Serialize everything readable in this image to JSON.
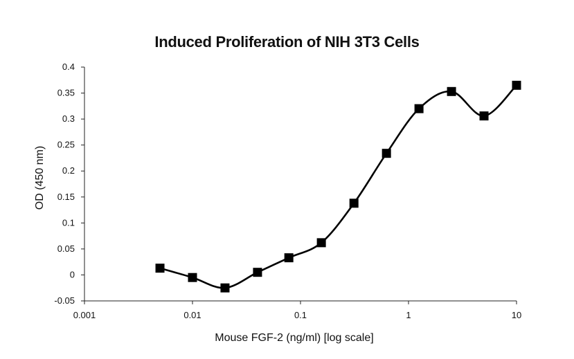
{
  "chart_data": {
    "type": "line",
    "title": "Induced Proliferation of NIH 3T3 Cells",
    "xlabel": "Mouse FGF-2 (ng/ml) [log scale]",
    "ylabel": "OD (450 nm)",
    "x_scale": "log",
    "xlim": [
      0.001,
      10
    ],
    "ylim": [
      -0.05,
      0.4
    ],
    "x_ticks": [
      0.001,
      0.01,
      0.1,
      1,
      10
    ],
    "x_tick_labels": [
      "0.001",
      "0.01",
      "0.1",
      "1",
      "10"
    ],
    "y_ticks": [
      -0.05,
      0,
      0.05,
      0.1,
      0.15,
      0.2,
      0.25,
      0.3,
      0.35,
      0.4
    ],
    "y_tick_labels": [
      "-0.05",
      "0",
      "0.05",
      "0.1",
      "0.15",
      "0.2",
      "0.25",
      "0.3",
      "0.35",
      "0.4"
    ],
    "grid": false,
    "legend": "none",
    "marker": "square",
    "line_style": "smooth",
    "color": "#000000",
    "series": [
      {
        "x": [
          0.005,
          0.01,
          0.02,
          0.04,
          0.078,
          0.156,
          0.3125,
          0.625,
          1.25,
          2.5,
          5,
          10
        ],
        "y": [
          0.013,
          -0.005,
          -0.025,
          0.005,
          0.033,
          0.062,
          0.138,
          0.234,
          0.32,
          0.353,
          0.306,
          0.365
        ]
      }
    ]
  }
}
